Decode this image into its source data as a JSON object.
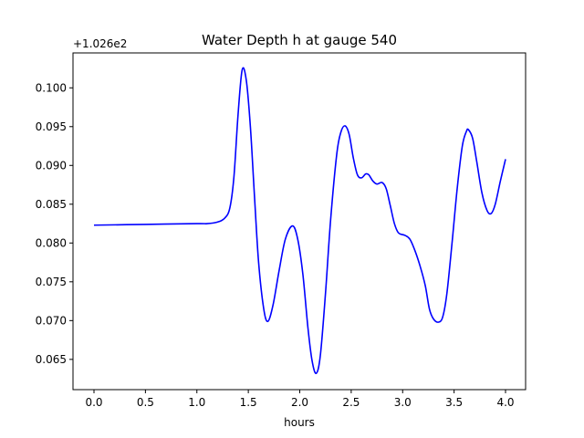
{
  "chart_data": {
    "type": "line",
    "title": "Water Depth h at gauge 540",
    "xlabel": "hours",
    "ylabel": "",
    "y_offset_label": "+1.026e2",
    "xlim": [
      -0.204,
      4.195
    ],
    "ylim": [
      0.0611,
      0.1045
    ],
    "xticks": [
      0.0,
      0.5,
      1.0,
      1.5,
      2.0,
      2.5,
      3.0,
      3.5,
      4.0
    ],
    "xtick_labels": [
      "0.0",
      "0.5",
      "1.0",
      "1.5",
      "2.0",
      "2.5",
      "3.0",
      "3.5",
      "4.0"
    ],
    "yticks": [
      0.065,
      0.07,
      0.075,
      0.08,
      0.085,
      0.09,
      0.095,
      0.1
    ],
    "ytick_labels": [
      "0.065",
      "0.070",
      "0.075",
      "0.080",
      "0.085",
      "0.090",
      "0.095",
      "0.100"
    ],
    "grid": false,
    "series": [
      {
        "name": "h",
        "color": "#0000ff",
        "x": [
          0,
          0.5,
          1.0,
          1.1,
          1.2,
          1.27,
          1.32,
          1.36,
          1.4,
          1.44,
          1.48,
          1.52,
          1.56,
          1.6,
          1.65,
          1.69,
          1.74,
          1.8,
          1.86,
          1.93,
          1.98,
          2.03,
          2.08,
          2.12,
          2.16,
          2.2,
          2.25,
          2.3,
          2.36,
          2.4,
          2.44,
          2.48,
          2.52,
          2.56,
          2.6,
          2.64,
          2.67,
          2.71,
          2.75,
          2.8,
          2.84,
          2.88,
          2.92,
          2.96,
          3.02,
          3.07,
          3.12,
          3.17,
          3.22,
          3.26,
          3.3,
          3.35,
          3.39,
          3.43,
          3.48,
          3.53,
          3.58,
          3.62,
          3.64,
          3.68,
          3.72,
          3.77,
          3.82,
          3.86,
          3.9,
          3.95,
          4.0
        ],
        "y": [
          0.0823,
          0.0824,
          0.0825,
          0.0825,
          0.0827,
          0.0832,
          0.0845,
          0.0885,
          0.0965,
          0.1023,
          0.101,
          0.095,
          0.086,
          0.0775,
          0.0715,
          0.0699,
          0.072,
          0.0765,
          0.0805,
          0.0822,
          0.0805,
          0.076,
          0.069,
          0.0648,
          0.0632,
          0.0655,
          0.0735,
          0.083,
          0.0915,
          0.0943,
          0.0951,
          0.094,
          0.091,
          0.0888,
          0.0884,
          0.0889,
          0.0888,
          0.088,
          0.0876,
          0.0878,
          0.087,
          0.0848,
          0.0825,
          0.0813,
          0.081,
          0.0805,
          0.079,
          0.077,
          0.0745,
          0.0715,
          0.0702,
          0.0698,
          0.0705,
          0.0735,
          0.08,
          0.087,
          0.0925,
          0.0944,
          0.0946,
          0.0935,
          0.0905,
          0.0865,
          0.0842,
          0.0838,
          0.085,
          0.088,
          0.0908
        ]
      }
    ]
  }
}
